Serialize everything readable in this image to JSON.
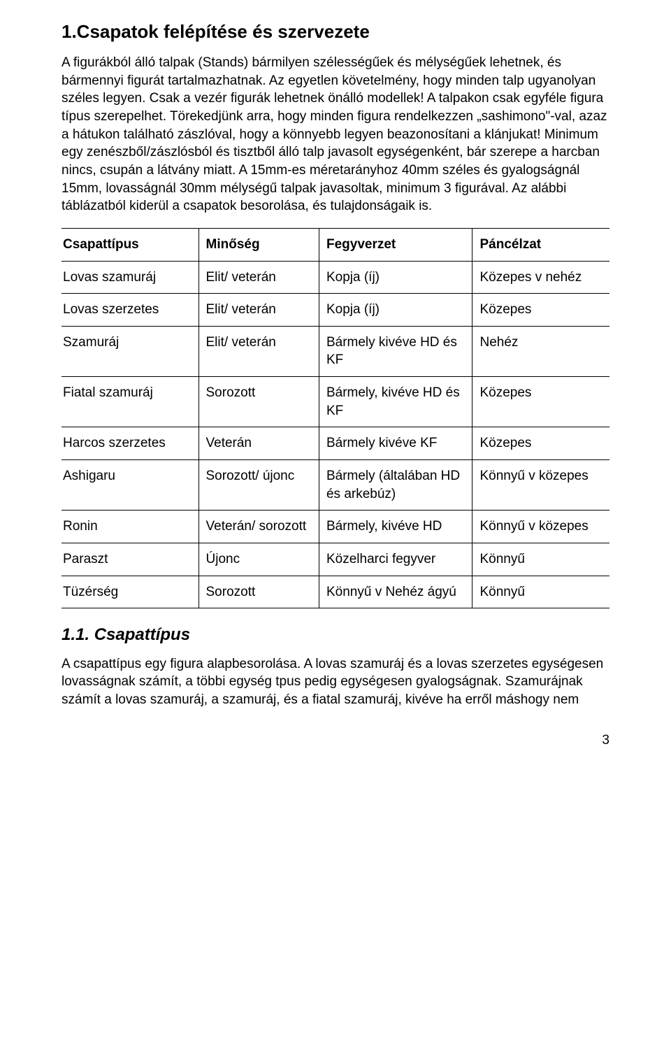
{
  "page": {
    "heading": "1.Csapatok felépítése és szervezete",
    "paragraph": "A figurákból álló talpak (Stands) bármilyen szélességűek és mélységűek lehetnek, és bármennyi figurát tartalmazhatnak. Az egyetlen követelmény, hogy minden talp ugyanolyan széles legyen. Csak a vezér figurák lehetnek önálló modellek! A talpakon csak egyféle figura típus szerepelhet. Törekedjünk arra, hogy minden figura rendelkezzen „sashimono\"-val, azaz a hátukon található zászlóval, hogy a könnyebb legyen beazonosítani a klánjukat! Minimum egy zenészből/zászlósból és tisztből álló talp javasolt egységenként, bár szerepe a harcban nincs, csupán a látvány miatt. A 15mm-es méretarányhoz 40mm széles és gyalogságnál 15mm, lovasságnál 30mm mélységű talpak javasoltak, minimum 3 figurával. Az alábbi táblázatból kiderül a csapatok besorolása, és tulajdonságaik is.",
    "subheading": "1.1. Csapattípus",
    "paragraph2": "A csapattípus egy figura alapbesorolása. A lovas szamuráj és a lovas szerzetes egységesen lovasságnak számít, a többi egység tpus pedig egységesen gyalogságnak. Szamurájnak számít a lovas szamuráj, a szamuráj, és a fiatal szamuráj, kivéve ha erről máshogy nem",
    "page_number": "3"
  },
  "table": {
    "columns": [
      "Csapattípus",
      "Minőség",
      "Fegyverzet",
      "Páncélzat"
    ],
    "col_widths_pct": [
      25,
      22,
      28,
      25
    ],
    "header_fontweight": "bold",
    "cell_fontsize": 19,
    "border_color": "#000000",
    "background_color": "#ffffff",
    "rows": [
      [
        "Lovas szamuráj",
        "Elit/ veterán",
        "Kopja (íj)",
        "Közepes v nehéz"
      ],
      [
        "Lovas szerzetes",
        "Elit/ veterán",
        "Kopja (íj)",
        "Közepes"
      ],
      [
        "Szamuráj",
        "Elit/ veterán",
        "Bármely kivéve HD és KF",
        "Nehéz"
      ],
      [
        "Fiatal szamuráj",
        "Sorozott",
        "Bármely, kivéve HD és KF",
        "Közepes"
      ],
      [
        "Harcos szerzetes",
        "Veterán",
        "Bármely kivéve KF",
        "Közepes"
      ],
      [
        "Ashigaru",
        "Sorozott/ újonc",
        "Bármely (általában HD és arkebúz)",
        "Könnyű v közepes"
      ],
      [
        "Ronin",
        "Veterán/ sorozott",
        "Bármely, kivéve HD",
        "Könnyű v közepes"
      ],
      [
        "Paraszt",
        "Újonc",
        "Közelharci fegyver",
        "Könnyű"
      ],
      [
        "Tüzérség",
        "Sorozott",
        "Könnyű v Nehéz ágyú",
        "Könnyű"
      ]
    ]
  },
  "style": {
    "font_family": "Verdana",
    "text_color": "#000000",
    "background": "#ffffff",
    "heading_fontsize": 26,
    "body_fontsize": 19,
    "subheading_fontsize": 24
  }
}
